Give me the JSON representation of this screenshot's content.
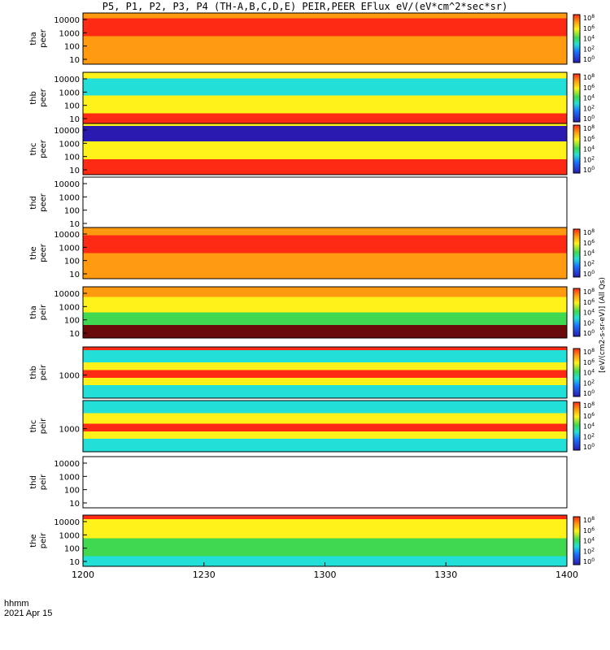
{
  "title": "P5, P1, P2, P3, P4 (TH-A,B,C,D,E) PEIR,PEER EFlux eV/(eV*cm^2*sec*sr)",
  "footer": {
    "time_format": "hhmm",
    "date": "2021 Apr 15"
  },
  "colors": {
    "low": "#2a1ab0",
    "cyan": "#22e0d8",
    "green": "#40d850",
    "yellow": "#fff21a",
    "orange": "#ff9a10",
    "red": "#ff2a14",
    "dark_red": "#6a0a0a"
  },
  "chart_data": {
    "type": "heatmap",
    "x_ticks": [
      "1200",
      "1230",
      "1300",
      "1330",
      "1400"
    ],
    "x_range": [
      1200,
      1400
    ],
    "colorbar_exponents": [
      "0",
      "2",
      "4",
      "6",
      "8"
    ],
    "colorbar_unit_labels": [
      "[eV/(cm2-s-sr-eV)] (All Qs)",
      "[eV/(cm2-s-sr-eV)] (All Qs)",
      "[eV/(cm2-s-sr-eV)] (All Qs)",
      "[eV/(cm2-s-sr-eV)] (All Qs)",
      "[eV/(cm2-s-sr-eV)] (All Qs)"
    ],
    "panels": [
      {
        "probe": "tha",
        "type": "peer",
        "yticks": [
          "10000",
          "1000",
          "100",
          "10"
        ],
        "bands": [
          [
            "orange",
            0.1
          ],
          [
            "red",
            0.45
          ],
          [
            "orange",
            0.9
          ],
          [
            "orange",
            1
          ]
        ],
        "colorbar": true
      },
      {
        "probe": "thb",
        "type": "peer",
        "yticks": [
          "10000",
          "1000",
          "100",
          "10"
        ],
        "bands": [
          [
            "yellow",
            0.12
          ],
          [
            "cyan",
            0.45
          ],
          [
            "yellow",
            0.8
          ],
          [
            "red",
            1
          ]
        ],
        "colorbar": true
      },
      {
        "probe": "thc",
        "type": "peer",
        "yticks": [
          "10000",
          "1000",
          "100",
          "10"
        ],
        "bands": [
          [
            "yellow",
            0.05
          ],
          [
            "low",
            0.35
          ],
          [
            "yellow",
            0.7
          ],
          [
            "red",
            1
          ]
        ],
        "colorbar": true
      },
      {
        "probe": "thd",
        "type": "peer",
        "yticks": [
          "10000",
          "1000",
          "100",
          "10"
        ],
        "bands": [],
        "colorbar": false
      },
      {
        "probe": "the",
        "type": "peer",
        "yticks": [
          "10000",
          "1000",
          "100",
          "10"
        ],
        "bands": [
          [
            "orange",
            0.15
          ],
          [
            "red",
            0.5
          ],
          [
            "orange",
            1
          ]
        ],
        "colorbar": true
      },
      {
        "probe": "tha",
        "type": "peir",
        "yticks": [
          "10000",
          "1000",
          "100",
          "10"
        ],
        "bands": [
          [
            "orange",
            0.2
          ],
          [
            "yellow",
            0.5
          ],
          [
            "green",
            0.75
          ],
          [
            "dark_red",
            1
          ]
        ],
        "colorbar": true
      },
      {
        "probe": "thb",
        "type": "peir",
        "yticks": [
          "1000"
        ],
        "bands": [
          [
            "red",
            0.06
          ],
          [
            "cyan",
            0.3
          ],
          [
            "yellow",
            0.45
          ],
          [
            "red",
            0.6
          ],
          [
            "yellow",
            0.75
          ],
          [
            "cyan",
            1
          ]
        ],
        "colorbar": true
      },
      {
        "probe": "thc",
        "type": "peir",
        "yticks": [
          "1000"
        ],
        "bands": [
          [
            "cyan",
            0.25
          ],
          [
            "yellow",
            0.45
          ],
          [
            "red",
            0.6
          ],
          [
            "yellow",
            0.75
          ],
          [
            "cyan",
            1
          ]
        ],
        "colorbar": true
      },
      {
        "probe": "thd",
        "type": "peir",
        "yticks": [
          "10000",
          "1000",
          "100",
          "10"
        ],
        "bands": [],
        "colorbar": false
      },
      {
        "probe": "the",
        "type": "peir",
        "yticks": [
          "10000",
          "1000",
          "100",
          "10"
        ],
        "bands": [
          [
            "red",
            0.08
          ],
          [
            "yellow",
            0.45
          ],
          [
            "green",
            0.8
          ],
          [
            "cyan",
            1
          ]
        ],
        "colorbar": true
      }
    ]
  }
}
